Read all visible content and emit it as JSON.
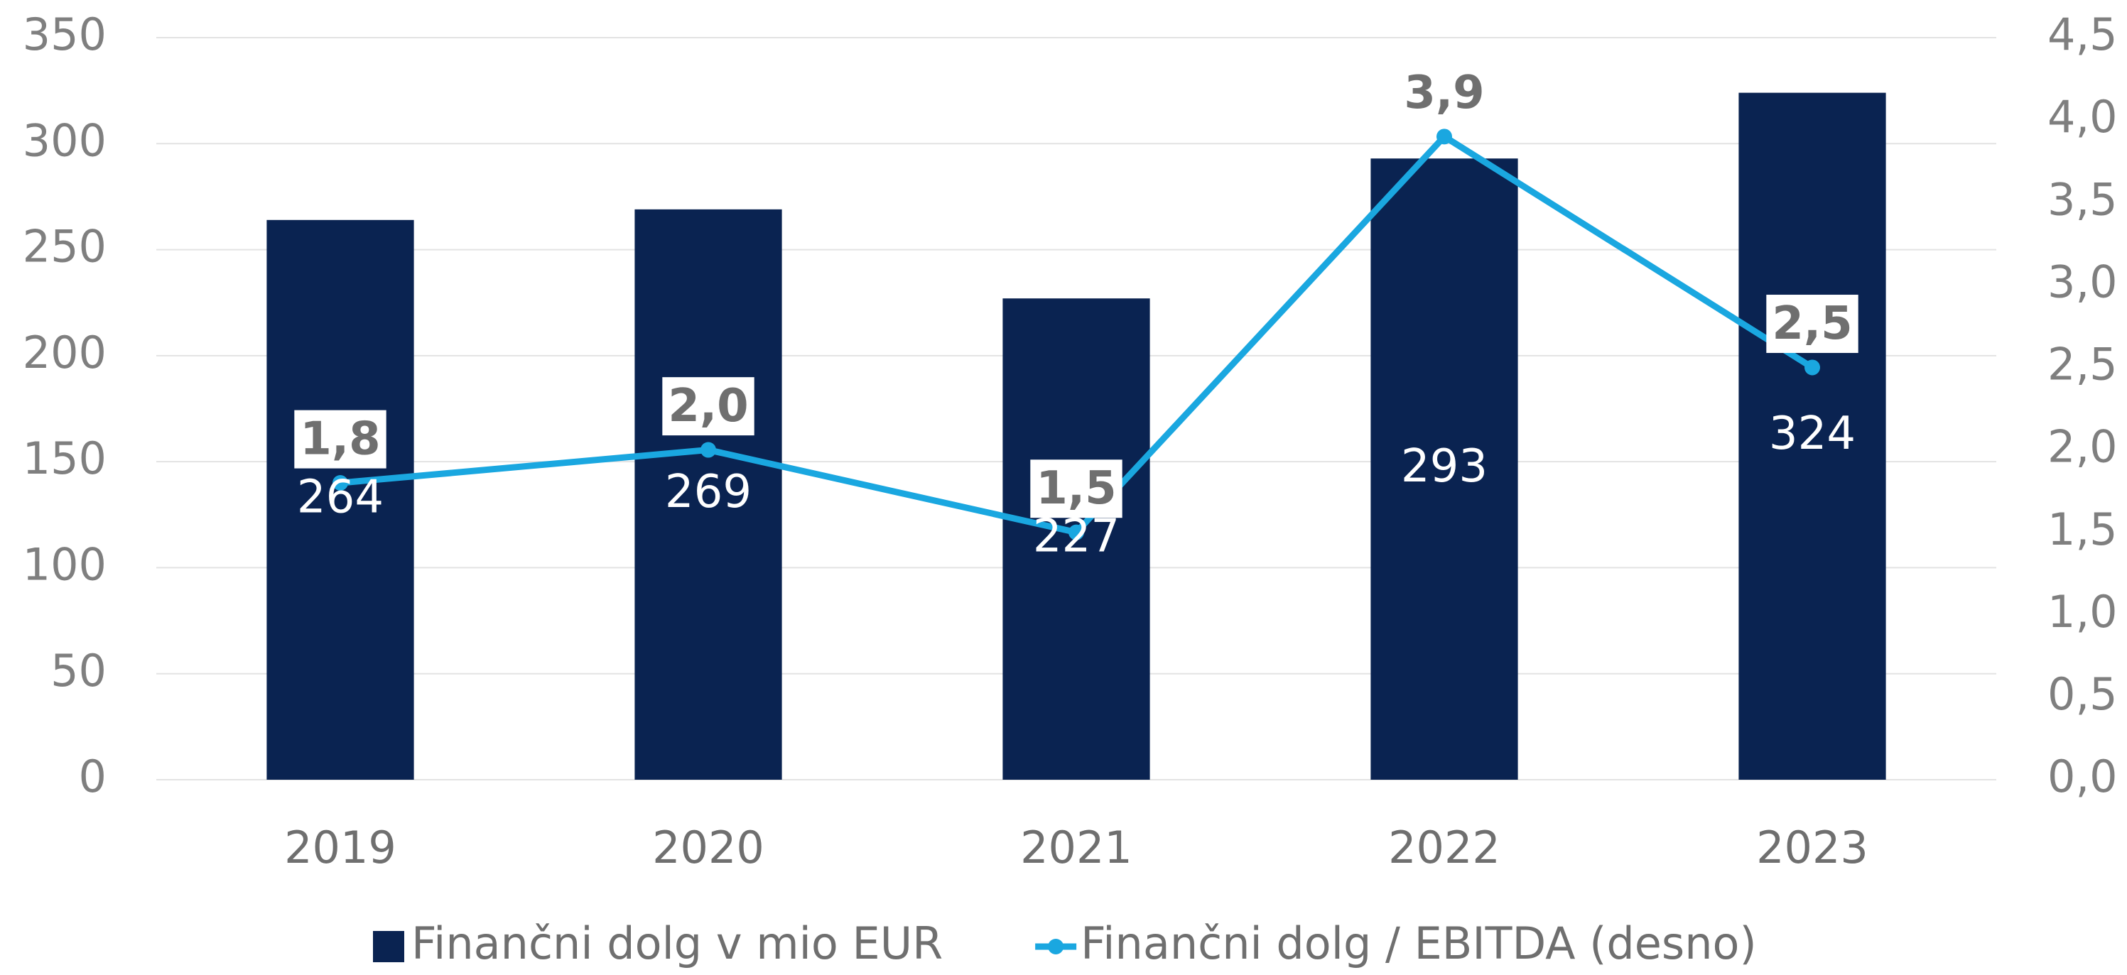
{
  "chart_data": {
    "type": "bar",
    "categories": [
      "2019",
      "2020",
      "2021",
      "2022",
      "2023"
    ],
    "series": [
      {
        "name": "Finančni dolg v mio EUR",
        "type": "bar",
        "color": "#0a2351",
        "values": [
          264,
          269,
          227,
          293,
          324
        ]
      },
      {
        "name": "Finančni dolg / EBITDA (desno)",
        "type": "line",
        "axis": "y2",
        "color": "#1aa7e0",
        "values": [
          1.8,
          2.0,
          1.5,
          3.9,
          2.5
        ],
        "value_labels": [
          "1,8",
          "2,0",
          "1,5",
          "3,9",
          "2,5"
        ]
      }
    ],
    "ylim": [
      0,
      350
    ],
    "yticks": [
      0,
      50,
      100,
      150,
      200,
      250,
      300,
      350
    ],
    "y2lim": [
      0,
      4.5
    ],
    "y2ticks": [
      {
        "value": 0,
        "label": "0,0"
      },
      {
        "value": 0.5,
        "label": "0,5"
      },
      {
        "value": 1,
        "label": "1,0"
      },
      {
        "value": 1.5,
        "label": "1,5"
      },
      {
        "value": 2,
        "label": "2,0"
      },
      {
        "value": 2.5,
        "label": "2,5"
      },
      {
        "value": 3,
        "label": "3,0"
      },
      {
        "value": 3.5,
        "label": "3,5"
      },
      {
        "value": 4,
        "label": "4,0"
      },
      {
        "value": 4.5,
        "label": "4,5"
      }
    ],
    "grid": true,
    "legend": "bottom"
  }
}
